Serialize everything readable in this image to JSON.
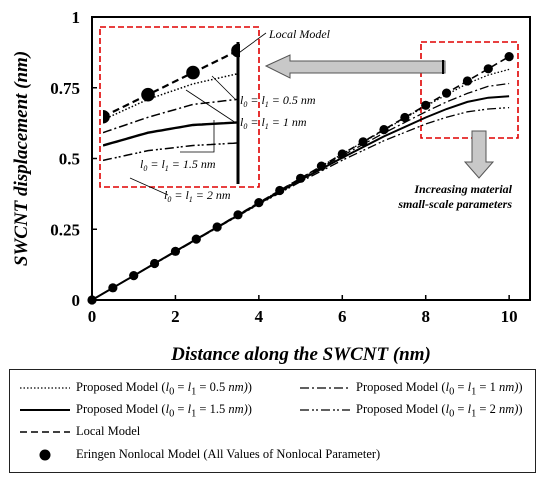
{
  "chart_data": {
    "type": "line",
    "title": "",
    "xlabel": "Distance along the SWCNT (nm)",
    "ylabel": "SWCNT displacement (nm)",
    "xlim": [
      0,
      10.5
    ],
    "ylim": [
      0,
      1
    ],
    "xticks": [
      "0",
      "2",
      "4",
      "6",
      "8",
      "10"
    ],
    "yticks": [
      "0",
      "0.25",
      "0.5",
      "0.75",
      "1"
    ],
    "grid": false,
    "legend_position": "bottom",
    "series": [
      {
        "name": "Proposed Model (l0 = l1 = 0.5 nm)",
        "style": "dotted",
        "x": [
          0,
          1,
          2,
          3,
          4,
          5,
          6,
          7,
          8,
          8.5,
          9,
          9.5,
          10
        ],
        "y": [
          0,
          0.086,
          0.172,
          0.258,
          0.344,
          0.43,
          0.516,
          0.6,
          0.685,
          0.725,
          0.765,
          0.795,
          0.815
        ]
      },
      {
        "name": "Proposed Model (l0 = l1 = 1 nm)",
        "style": "dashdot",
        "x": [
          0,
          1,
          2,
          3,
          4,
          5,
          6,
          7,
          8,
          8.5,
          9,
          9.5,
          10
        ],
        "y": [
          0,
          0.086,
          0.172,
          0.258,
          0.343,
          0.428,
          0.51,
          0.59,
          0.665,
          0.7,
          0.73,
          0.755,
          0.765
        ]
      },
      {
        "name": "Proposed Model (l0 = l1 = 1.5 nm)",
        "style": "solid",
        "x": [
          0,
          1,
          2,
          3,
          4,
          5,
          6,
          7,
          8,
          8.5,
          9,
          9.5,
          10
        ],
        "y": [
          0,
          0.086,
          0.172,
          0.257,
          0.341,
          0.424,
          0.503,
          0.578,
          0.645,
          0.675,
          0.7,
          0.715,
          0.72
        ]
      },
      {
        "name": "Proposed Model (l0 = l1 = 2 nm)",
        "style": "dashdotdot",
        "x": [
          0,
          1,
          2,
          3,
          4,
          5,
          6,
          7,
          8,
          8.5,
          9,
          9.5,
          10
        ],
        "y": [
          0,
          0.085,
          0.17,
          0.255,
          0.338,
          0.418,
          0.494,
          0.563,
          0.622,
          0.646,
          0.665,
          0.675,
          0.68
        ]
      },
      {
        "name": "Local Model",
        "style": "dashed",
        "x": [
          0,
          10
        ],
        "y": [
          0,
          0.86
        ]
      },
      {
        "name": "Eringen Nonlocal Model (All Values of Nonlocal Parameter)",
        "style": "markers",
        "x": [
          0,
          0.5,
          1,
          1.5,
          2,
          2.5,
          3,
          3.5,
          4,
          4.5,
          5,
          5.5,
          6,
          6.5,
          7,
          7.5,
          8,
          8.5,
          9,
          9.5,
          10
        ],
        "y": [
          0,
          0.043,
          0.086,
          0.129,
          0.172,
          0.215,
          0.258,
          0.301,
          0.344,
          0.387,
          0.43,
          0.473,
          0.516,
          0.559,
          0.602,
          0.645,
          0.688,
          0.731,
          0.774,
          0.817,
          0.86
        ]
      }
    ],
    "annotations": {
      "local_model": "Local Model",
      "l05": "l0 = l1 = 0.5 nm",
      "l1": "l0 = l1 = 1 nm",
      "l15": "l0 = l1 = 1.5 nm",
      "l2": "l0 = l1 = 2 nm",
      "increasing_1": "Increasing material",
      "increasing_2": "small-scale parameters"
    }
  },
  "legend": {
    "entries": [
      {
        "pre": "Proposed Model (",
        "sub": "0.5",
        "post": " nm)"
      },
      {
        "pre": "Proposed Model (",
        "sub": "1",
        "post": " nm)"
      },
      {
        "pre": "Proposed Model (",
        "sub": "1.5",
        "post": " nm)"
      },
      {
        "pre": "Proposed Model (",
        "sub": "2",
        "post": " nm)"
      },
      {
        "text": "Local Model"
      },
      {
        "text": "Eringen Nonlocal Model (All Values of Nonlocal Parameter)"
      }
    ]
  }
}
